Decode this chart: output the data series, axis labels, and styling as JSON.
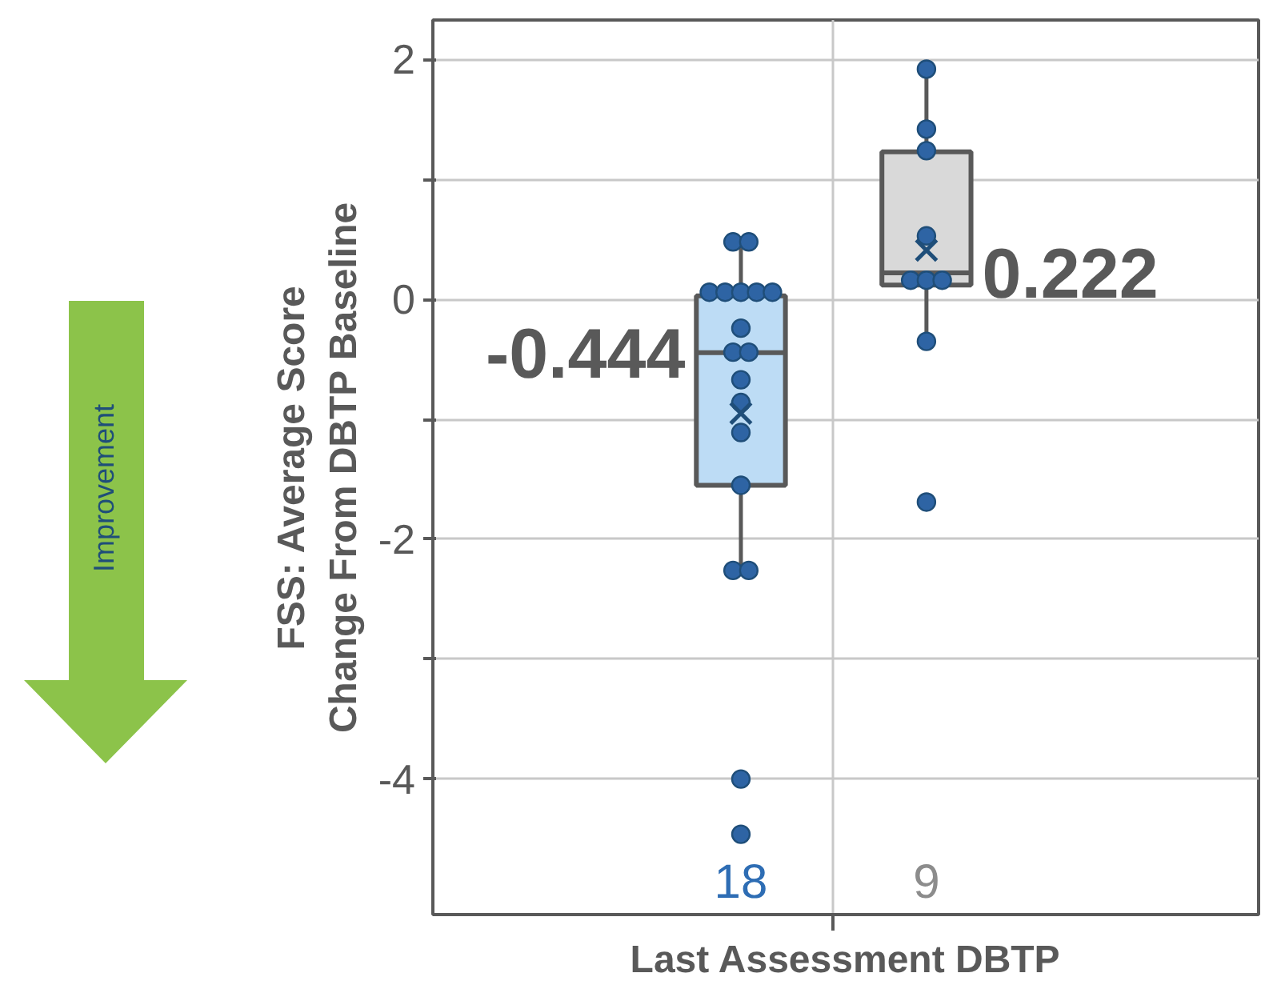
{
  "chart_data": {
    "type": "box",
    "xlabel": "Last Assessment DBTP",
    "ylabel": "FSS: Average Score\nChange From DBTP Baseline",
    "categories": [
      "18",
      "9"
    ],
    "colors": [
      "#bddcf5",
      "#d9d9d9"
    ],
    "boxes": [
      {
        "low": -2.26,
        "q1": -1.55,
        "median": -0.444,
        "q3": 0.03,
        "high": 0.48,
        "mean": -0.95
      },
      {
        "low": -0.35,
        "q1": 0.12,
        "median": 0.222,
        "q3": 1.23,
        "high": 1.92,
        "mean": 0.41
      }
    ],
    "series": [
      {
        "type": "scatter",
        "color": "#2e64a4",
        "x": [
          "18",
          "18",
          "18",
          "18",
          "18",
          "18",
          "18",
          "18",
          "18",
          "18",
          "18",
          "18",
          "18",
          "18",
          "18",
          "18",
          "18",
          "18"
        ],
        "values": [
          0.48,
          0.48,
          0.06,
          0.06,
          0.06,
          0.06,
          0.06,
          -0.24,
          -0.44,
          -0.44,
          -0.67,
          -0.86,
          -1.11,
          -1.55,
          -2.26,
          -2.26,
          -4.0,
          -4.46
        ]
      },
      {
        "type": "scatter",
        "color": "#2e64a4",
        "x": [
          "9",
          "9",
          "9",
          "9",
          "9",
          "9",
          "9",
          "9",
          "9"
        ],
        "values": [
          1.92,
          1.42,
          1.24,
          0.53,
          0.16,
          0.16,
          0.16,
          -0.35,
          -1.69
        ]
      }
    ],
    "marker": "circle",
    "ylim": [
      -5.13,
      2.33
    ],
    "yticks": [
      2,
      {
        "value": 1,
        "label": null
      },
      0,
      {
        "value": -1,
        "label": null
      },
      -2,
      {
        "value": -3,
        "label": null
      },
      -4
    ],
    "grid": true,
    "annotations": [
      "-0.444",
      "0.222",
      "Improvement"
    ]
  }
}
